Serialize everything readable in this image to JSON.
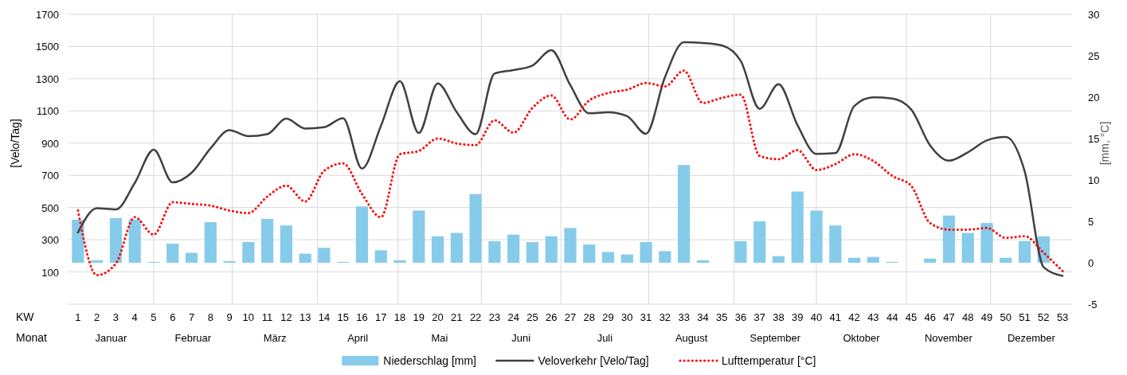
{
  "chart_data": {
    "type": "line",
    "xlabel": "KW",
    "x2label": "Monat",
    "ylabel": "[Velo/Tag]",
    "y2label": "[mm, °C]",
    "x": [
      1,
      2,
      3,
      4,
      5,
      6,
      7,
      8,
      9,
      10,
      11,
      12,
      13,
      14,
      15,
      16,
      17,
      18,
      19,
      20,
      21,
      22,
      23,
      24,
      25,
      26,
      27,
      28,
      29,
      30,
      31,
      32,
      33,
      34,
      35,
      36,
      37,
      38,
      39,
      40,
      41,
      42,
      43,
      44,
      45,
      46,
      47,
      48,
      49,
      50,
      51,
      52,
      53
    ],
    "xlim": [
      0.5,
      53.5
    ],
    "xticks": [
      1,
      2,
      3,
      4,
      5,
      6,
      7,
      8,
      9,
      10,
      11,
      12,
      13,
      14,
      15,
      16,
      17,
      18,
      19,
      20,
      21,
      22,
      23,
      24,
      25,
      26,
      27,
      28,
      29,
      30,
      31,
      32,
      33,
      34,
      35,
      36,
      37,
      38,
      39,
      40,
      41,
      42,
      43,
      44,
      45,
      46,
      47,
      48,
      49,
      50,
      51,
      52,
      53
    ],
    "annotations": [
      "Januar",
      "Februar",
      "März",
      "April",
      "Mai",
      "Juni",
      "Juli",
      "August",
      "September",
      "Oktober",
      "November",
      "Dezember"
    ],
    "ylim": [
      -100,
      1700
    ],
    "yticks": [
      100,
      300,
      500,
      700,
      900,
      1100,
      1300,
      1500,
      1700
    ],
    "y2lim": [
      -5,
      30
    ],
    "y2ticks": [
      -5,
      0,
      5,
      10,
      15,
      20,
      25,
      30
    ],
    "grid": "y",
    "legend": "bottom",
    "ref_lines": [
      {
        "axis": "x",
        "value": 5,
        "label": null,
        "color": "#d9d9d9"
      },
      {
        "axis": "x",
        "value": 9.15,
        "label": null,
        "color": "#d9d9d9"
      },
      {
        "axis": "x",
        "value": 13.65,
        "label": null,
        "color": "#d9d9d9"
      },
      {
        "axis": "x",
        "value": 17.9,
        "label": null,
        "color": "#d9d9d9"
      },
      {
        "axis": "x",
        "value": 22.3,
        "label": null,
        "color": "#d9d9d9"
      },
      {
        "axis": "x",
        "value": 26.5,
        "label": null,
        "color": "#d9d9d9"
      },
      {
        "axis": "x",
        "value": 31.15,
        "label": null,
        "color": "#d9d9d9"
      },
      {
        "axis": "x",
        "value": 35.65,
        "label": null,
        "color": "#d9d9d9"
      },
      {
        "axis": "x",
        "value": 40,
        "label": null,
        "color": "#d9d9d9"
      },
      {
        "axis": "x",
        "value": 44.75,
        "label": null,
        "color": "#d9d9d9"
      },
      {
        "axis": "x",
        "value": 49.2,
        "label": null,
        "color": "#d9d9d9"
      }
    ],
    "series": [
      {
        "name": "Niederschlag [mm]",
        "type": "bar",
        "axis": "y2",
        "color": "#87cbea",
        "values": [
          5.2,
          0.3,
          5.4,
          5.2,
          0.1,
          2.3,
          1.2,
          4.9,
          0.2,
          2.5,
          5.3,
          4.5,
          1.1,
          1.8,
          0.1,
          6.8,
          1.5,
          0.3,
          6.3,
          3.2,
          3.6,
          8.3,
          2.6,
          3.4,
          2.5,
          3.2,
          4.2,
          2.2,
          1.3,
          1.0,
          2.5,
          1.4,
          11.8,
          0.3,
          0,
          2.6,
          5.0,
          0.8,
          8.6,
          6.3,
          4.5,
          0.6,
          0.7,
          0.1,
          0,
          0.5,
          5.7,
          3.6,
          4.8,
          0.6,
          2.6,
          3.2,
          0
        ]
      },
      {
        "name": "Veloverkehr [Velo/Tag]",
        "color": "#404040",
        "line_style": "solid",
        "values": [
          345,
          496,
          488,
          653,
          859,
          656,
          716,
          867,
          981,
          943,
          956,
          1052,
          991,
          999,
          1055,
          742,
          1007,
          1284,
          963,
          1271,
          1093,
          956,
          1332,
          1354,
          1382,
          1477,
          1260,
          1085,
          1092,
          1068,
          958,
          1309,
          1527,
          1522,
          1507,
          1411,
          1113,
          1266,
          1012,
          833,
          838,
          1131,
          1184,
          1177,
          1110,
          887,
          791,
          843,
          917,
          938,
          724,
          129,
          76
        ]
      },
      {
        "name": "Lufttemperatur [°C]",
        "axis": "y2",
        "color": "#ff0000",
        "line_style": "dotted",
        "values": [
          6.3,
          -1.5,
          -0.1,
          5.5,
          3.4,
          7.3,
          7.1,
          6.9,
          6.3,
          6.0,
          8.0,
          9.3,
          7.4,
          11.1,
          12.0,
          8.3,
          5.5,
          13.1,
          13.5,
          15.0,
          14.4,
          14.2,
          17.2,
          15.7,
          18.7,
          20.2,
          17.3,
          19.6,
          20.5,
          20.9,
          21.7,
          21.3,
          23.2,
          19.3,
          19.9,
          20.3,
          12.9,
          12.5,
          13.6,
          11.2,
          11.9,
          13.1,
          12.3,
          10.5,
          9.3,
          4.8,
          4.0,
          4.0,
          4.2,
          3.0,
          3.2,
          1.2,
          -1.0
        ]
      }
    ]
  }
}
